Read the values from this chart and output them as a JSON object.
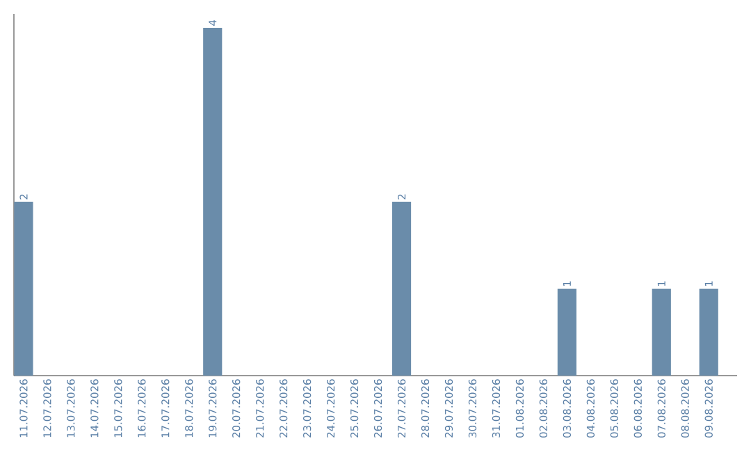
{
  "chart_data": {
    "type": "bar",
    "categories": [
      "11.07.2026",
      "12.07.2026",
      "13.07.2026",
      "14.07.2026",
      "15.07.2026",
      "16.07.2026",
      "17.07.2026",
      "18.07.2026",
      "19.07.2026",
      "20.07.2026",
      "21.07.2026",
      "22.07.2026",
      "23.07.2026",
      "24.07.2026",
      "25.07.2026",
      "26.07.2026",
      "27.07.2026",
      "28.07.2026",
      "29.07.2026",
      "30.07.2026",
      "31.07.2026",
      "01.08.2026",
      "02.08.2026",
      "03.08.2026",
      "04.08.2026",
      "05.08.2026",
      "06.08.2026",
      "07.08.2026",
      "08.08.2026",
      "09.08.2026"
    ],
    "values": [
      2,
      0,
      0,
      0,
      0,
      0,
      0,
      0,
      4,
      0,
      0,
      0,
      0,
      0,
      0,
      0,
      2,
      0,
      0,
      0,
      0,
      0,
      0,
      1,
      0,
      0,
      0,
      1,
      0,
      1
    ],
    "value_labels": [
      "2",
      null,
      null,
      null,
      null,
      null,
      null,
      null,
      "4",
      null,
      null,
      null,
      null,
      null,
      null,
      null,
      "2",
      null,
      null,
      null,
      null,
      null,
      null,
      "1",
      null,
      null,
      null,
      "1",
      null,
      "1"
    ],
    "color": "#6a8caa",
    "ylim": [
      0,
      4.16
    ],
    "tick_labels": "x",
    "grid": false
  }
}
